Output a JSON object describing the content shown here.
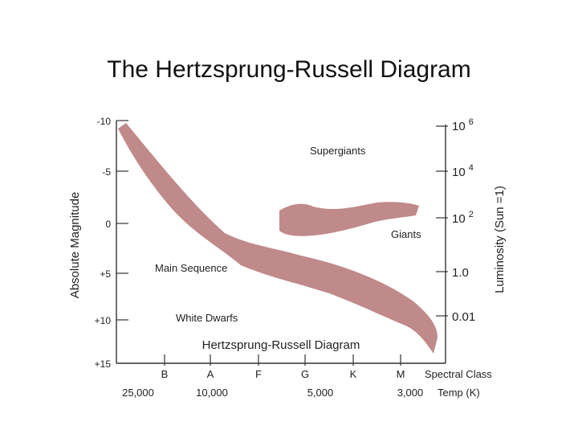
{
  "slide_title": "The Hertzsprung-Russell Diagram",
  "diagram": {
    "inner_title": "Hertzsprung-Russell Diagram",
    "left_axis_title": "Absolute Magnitude",
    "right_axis_title": "Luminosity (Sun =1)",
    "magnitude_ticks": [
      "-10",
      "-5",
      "0",
      "+5",
      "+10",
      "+15"
    ],
    "luminosity_ticks": [
      {
        "base": "10",
        "exp": "6"
      },
      {
        "base": "10",
        "exp": "4"
      },
      {
        "base": "10",
        "exp": "2"
      },
      {
        "base": "1.0",
        "exp": ""
      },
      {
        "base": "0.01",
        "exp": ""
      }
    ],
    "spectral_classes": [
      "B",
      "A",
      "F",
      "G",
      "K",
      "M"
    ],
    "spectral_class_label": "Spectral Class",
    "temperatures": [
      "25,000",
      "10,000",
      "5,000",
      "3,000"
    ],
    "temp_label": "Temp (K)",
    "regions": {
      "supergiants": "Supergiants",
      "giants": "Giants",
      "main_sequence": "Main Sequence",
      "white_dwarfs": "White Dwarfs"
    },
    "colors": {
      "band": "#c08a8a",
      "axis": "#333333"
    }
  }
}
